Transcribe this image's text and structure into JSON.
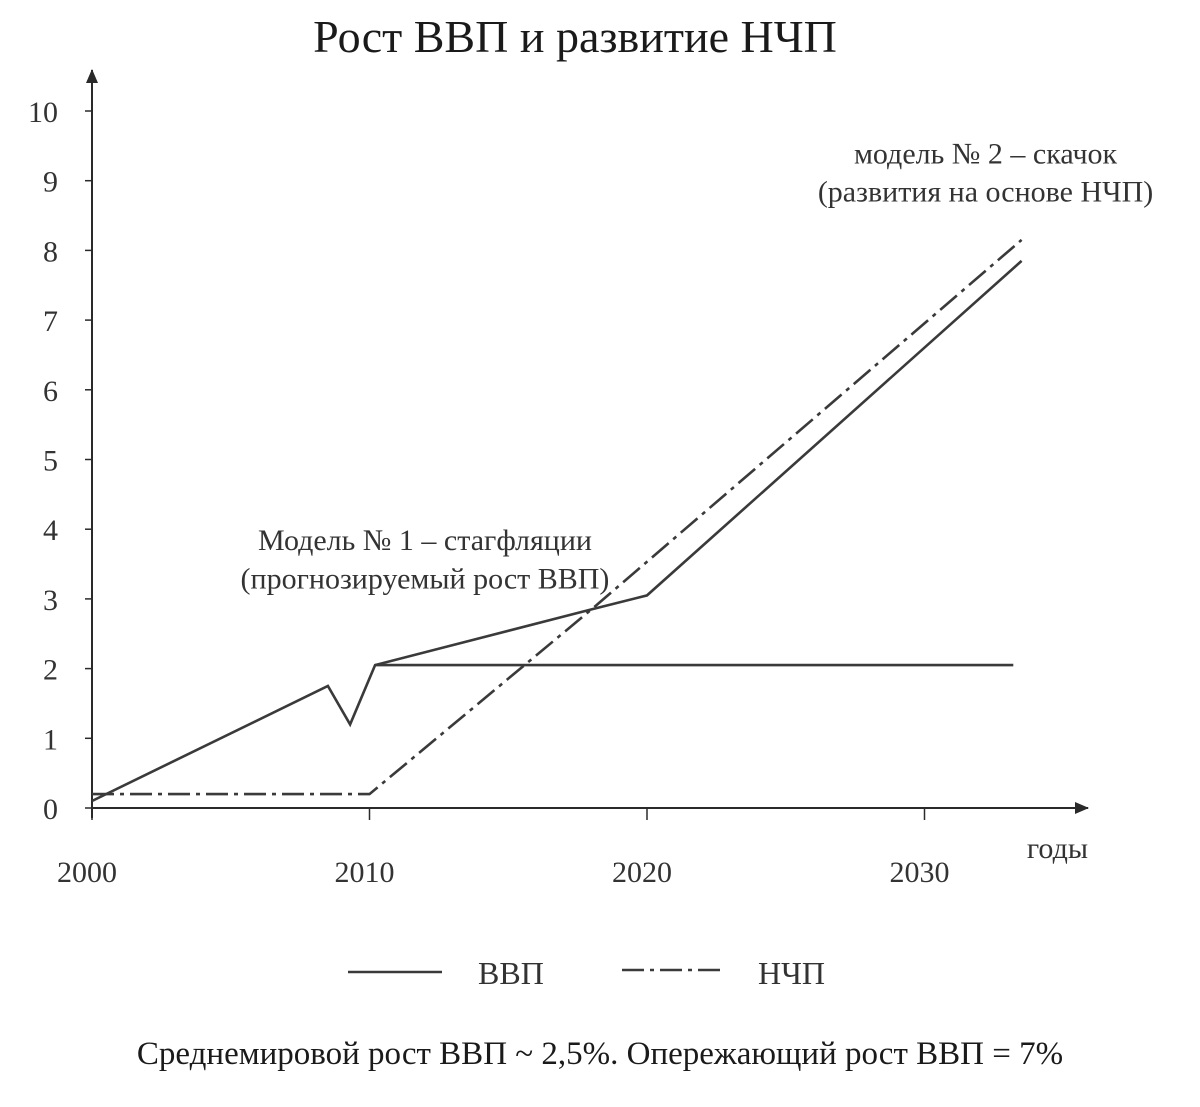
{
  "chart_data": {
    "type": "line",
    "title": "Рост ВВП и развитие НЧП",
    "xlabel": "годы",
    "ylabel": "",
    "xlim": [
      2000,
      2036
    ],
    "ylim": [
      0,
      10.5
    ],
    "x_ticks": [
      2000,
      2010,
      2020,
      2030
    ],
    "y_ticks": [
      0,
      1,
      2,
      3,
      4,
      5,
      6,
      7,
      8,
      9,
      10
    ],
    "grid": false,
    "legend": "bottom",
    "series": [
      {
        "name": "ВВП",
        "style": "solid",
        "color": "#3a3a3a",
        "points": [
          [
            2000,
            0.1
          ],
          [
            2008.5,
            1.75
          ],
          [
            2009.3,
            1.2
          ],
          [
            2010.2,
            2.05
          ],
          [
            2018,
            2.85
          ],
          [
            2020,
            3.05
          ],
          [
            2033.5,
            7.85
          ]
        ]
      },
      {
        "name": "ВВП",
        "style": "solid",
        "color": "#3a3a3a",
        "points": [
          [
            2010.2,
            2.05
          ],
          [
            2033.2,
            2.05
          ]
        ]
      },
      {
        "name": "НЧП",
        "style": "dash-dot",
        "color": "#3a3a3a",
        "points": [
          [
            2000,
            0.2
          ],
          [
            2010,
            0.2
          ],
          [
            2018,
            2.85
          ],
          [
            2033.5,
            8.15
          ]
        ]
      }
    ],
    "annotations": [
      {
        "text": "Модель № 1 – стагфляции",
        "x": 2012,
        "y": 3.7
      },
      {
        "text": "(прогнозируемый рост ВВП)",
        "x": 2012,
        "y": 3.15
      },
      {
        "text": "модель № 2 – скачок",
        "x": 2032.2,
        "y": 9.25
      },
      {
        "text": "(развития на основе НЧП)",
        "x": 2032.2,
        "y": 8.7
      }
    ]
  },
  "legend": {
    "gdp_label": "ВВП",
    "ncp_label": "НЧП"
  },
  "footnote": "Среднемировой рост ВВП ~ 2,5%. Опережающий рост ВВП = 7%"
}
